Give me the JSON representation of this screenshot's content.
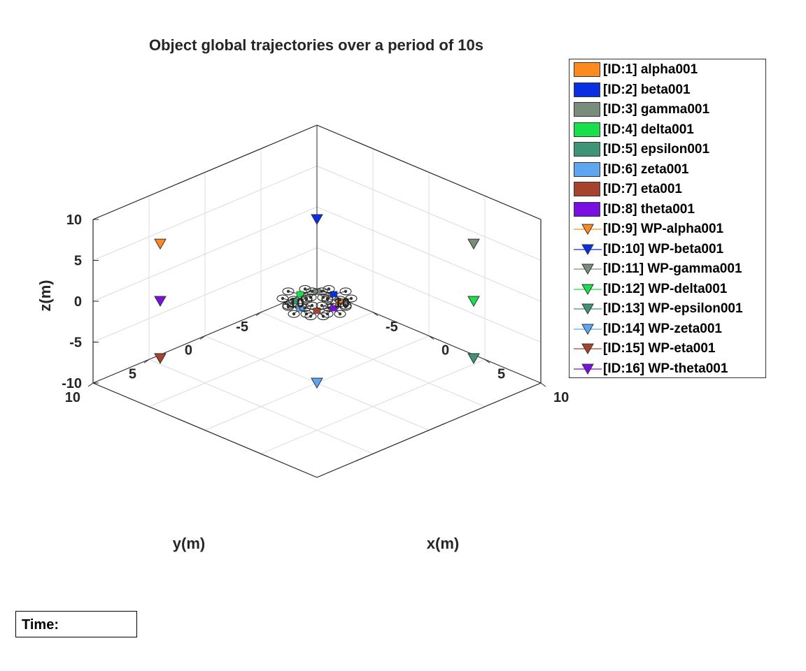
{
  "chart_data": {
    "type": "scatter",
    "title": "Object global trajectories over a period of 10s",
    "xlabel": "x(m)",
    "ylabel": "y(m)",
    "zlabel": "z(m)",
    "xlim": [
      -10,
      10
    ],
    "ylim": [
      -10,
      10
    ],
    "zlim": [
      -10,
      10
    ],
    "xticks": [
      "10",
      "5",
      "0",
      "-5",
      "-10"
    ],
    "yticks": [
      "10",
      "5",
      "0",
      "-5",
      "-10"
    ],
    "zticks": [
      "10",
      "5",
      "0",
      "-5",
      "-10"
    ],
    "grid": true,
    "legend_position": "right",
    "agents": [
      {
        "label": "[ID:1] alpha001",
        "color": "#ff8a1f",
        "x": 1,
        "y": -1,
        "z": 0
      },
      {
        "label": "[ID:2] beta001",
        "color": "#0a2fe0",
        "x": 0,
        "y": -1.5,
        "z": 0
      },
      {
        "label": "[ID:3] gamma001",
        "color": "#7a8c7c",
        "x": -1,
        "y": -1,
        "z": 0
      },
      {
        "label": "[ID:4] delta001",
        "color": "#19e04a",
        "x": -1.5,
        "y": 0,
        "z": 0
      },
      {
        "label": "[ID:5] epsilon001",
        "color": "#3f9478",
        "x": -1,
        "y": 1,
        "z": 0
      },
      {
        "label": "[ID:6] zeta001",
        "color": "#5ea6f0",
        "x": 0,
        "y": 1.5,
        "z": 0
      },
      {
        "label": "[ID:7] eta001",
        "color": "#a5432f",
        "x": 1,
        "y": 1,
        "z": 0
      },
      {
        "label": "[ID:8] theta001",
        "color": "#7a0fe3",
        "x": 1.5,
        "y": 0,
        "z": 0
      }
    ],
    "waypoints": [
      {
        "label": "[ID:9] WP-alpha001",
        "color": "#ff8a1f",
        "x": -7,
        "y": 7,
        "z": 7
      },
      {
        "label": "[ID:10] WP-beta001",
        "color": "#0a2fe0",
        "x": 0,
        "y": 0,
        "z": 10
      },
      {
        "label": "[ID:11] WP-gamma001",
        "color": "#7a8c7c",
        "x": 7,
        "y": -7,
        "z": 7
      },
      {
        "label": "[ID:12] WP-delta001",
        "color": "#19e04a",
        "x": 7,
        "y": -7,
        "z": 0
      },
      {
        "label": "[ID:13] WP-epsilon001",
        "color": "#3f9478",
        "x": 7,
        "y": -7,
        "z": -7
      },
      {
        "label": "[ID:14] WP-zeta001",
        "color": "#5ea6f0",
        "x": 0,
        "y": 0,
        "z": -10
      },
      {
        "label": "[ID:15] WP-eta001",
        "color": "#a5432f",
        "x": -7,
        "y": 7,
        "z": -7
      },
      {
        "label": "[ID:16] WP-theta001",
        "color": "#7a0fe3",
        "x": -7,
        "y": 7,
        "z": 0
      }
    ]
  },
  "time_box": {
    "label": "Time:"
  }
}
